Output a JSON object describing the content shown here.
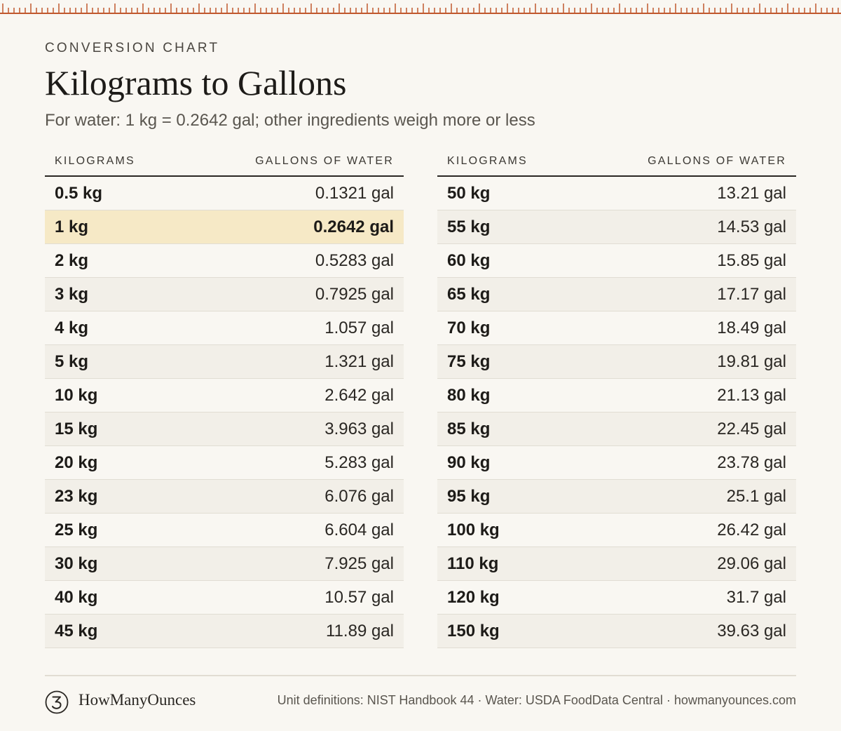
{
  "eyebrow": "CONVERSION CHART",
  "title": "Kilograms to Gallons",
  "subtitle": "For water: 1 kg = 0.2642 gal; other ingredients weigh more or less",
  "columns": {
    "kg": "KILOGRAMS",
    "gal": "GALLONS OF WATER"
  },
  "left_rows": [
    {
      "kg": "0.5 kg",
      "gal": "0.1321 gal"
    },
    {
      "kg": "1 kg",
      "gal": "0.2642 gal",
      "highlight": true
    },
    {
      "kg": "2 kg",
      "gal": "0.5283 gal"
    },
    {
      "kg": "3 kg",
      "gal": "0.7925 gal"
    },
    {
      "kg": "4 kg",
      "gal": "1.057 gal"
    },
    {
      "kg": "5 kg",
      "gal": "1.321 gal"
    },
    {
      "kg": "10 kg",
      "gal": "2.642 gal"
    },
    {
      "kg": "15 kg",
      "gal": "3.963 gal"
    },
    {
      "kg": "20 kg",
      "gal": "5.283 gal"
    },
    {
      "kg": "23 kg",
      "gal": "6.076 gal"
    },
    {
      "kg": "25 kg",
      "gal": "6.604 gal"
    },
    {
      "kg": "30 kg",
      "gal": "7.925 gal"
    },
    {
      "kg": "40 kg",
      "gal": "10.57 gal"
    },
    {
      "kg": "45 kg",
      "gal": "11.89 gal"
    }
  ],
  "right_rows": [
    {
      "kg": "50 kg",
      "gal": "13.21 gal"
    },
    {
      "kg": "55 kg",
      "gal": "14.53 gal"
    },
    {
      "kg": "60 kg",
      "gal": "15.85 gal"
    },
    {
      "kg": "65 kg",
      "gal": "17.17 gal"
    },
    {
      "kg": "70 kg",
      "gal": "18.49 gal"
    },
    {
      "kg": "75 kg",
      "gal": "19.81 gal"
    },
    {
      "kg": "80 kg",
      "gal": "21.13 gal"
    },
    {
      "kg": "85 kg",
      "gal": "22.45 gal"
    },
    {
      "kg": "90 kg",
      "gal": "23.78 gal"
    },
    {
      "kg": "95 kg",
      "gal": "25.1 gal"
    },
    {
      "kg": "100 kg",
      "gal": "26.42 gal"
    },
    {
      "kg": "110 kg",
      "gal": "29.06 gal"
    },
    {
      "kg": "120 kg",
      "gal": "31.7 gal"
    },
    {
      "kg": "150 kg",
      "gal": "39.63 gal"
    }
  ],
  "footer": {
    "brand": "HowManyOunces",
    "logo_icon": "ounce-glyph-icon",
    "sources": "Unit definitions: NIST Handbook 44 · Water: USDA FoodData Central · howmanyounces.com"
  },
  "colors": {
    "background": "#f9f7f2",
    "ruler": "#c0582e",
    "highlight": "#f6e9c6",
    "alt_row": "#f2efe8"
  }
}
